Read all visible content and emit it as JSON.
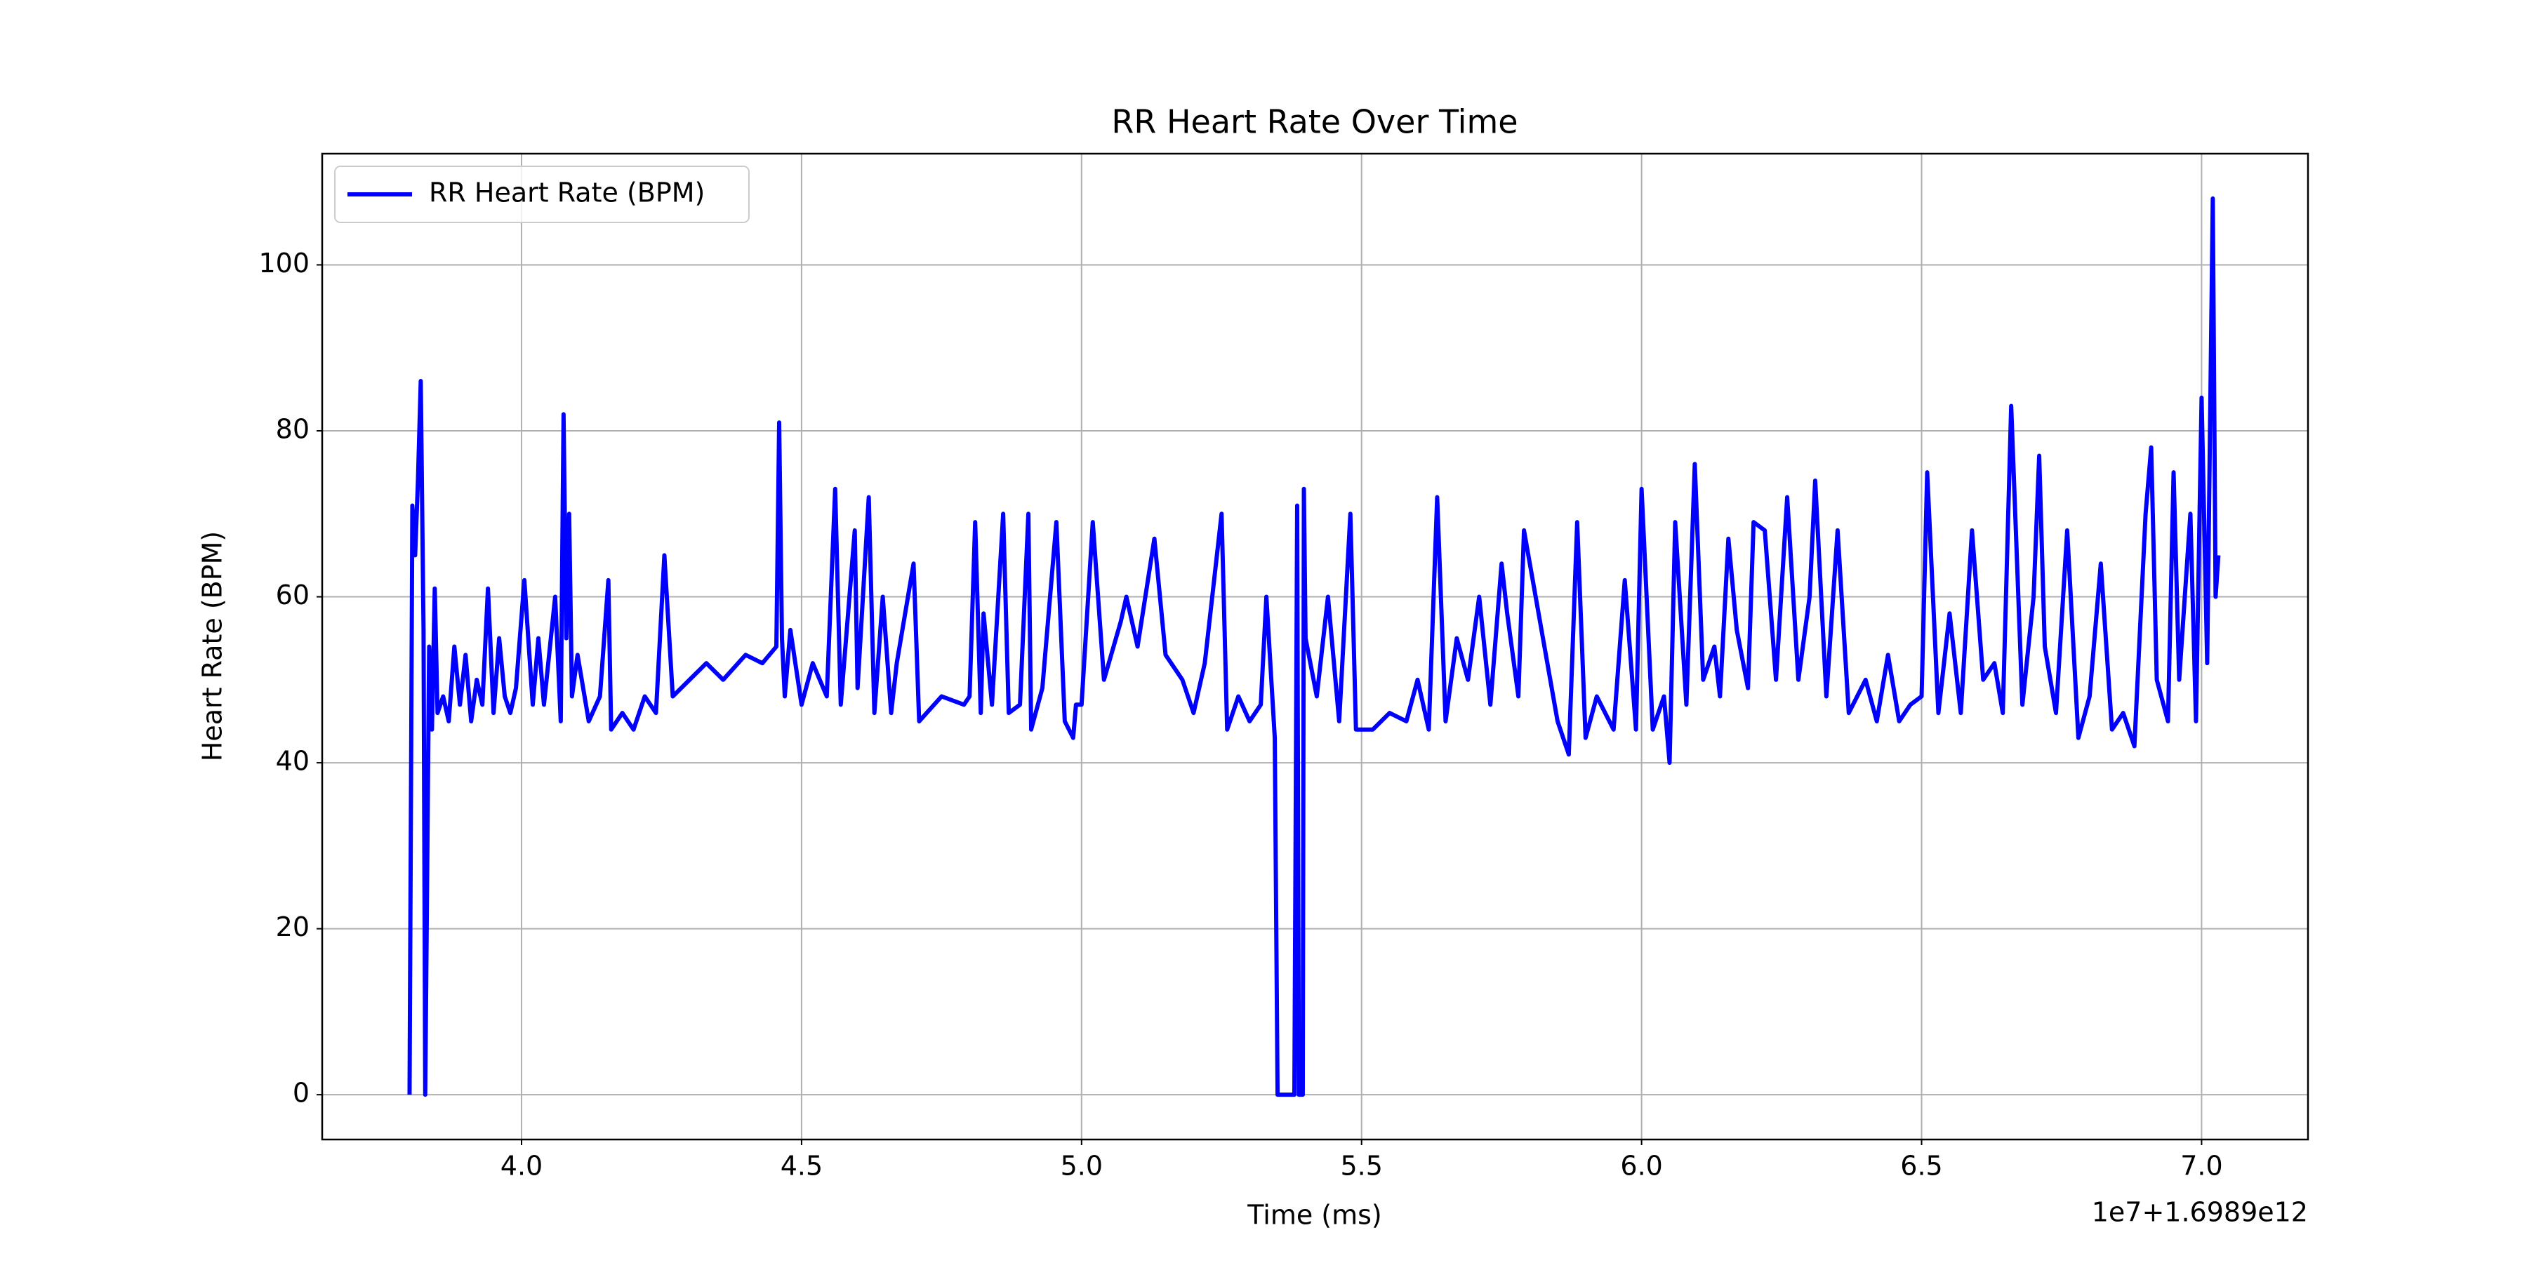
{
  "chart_data": {
    "type": "line",
    "title": "RR Heart Rate Over Time",
    "x_label": "Time (ms)",
    "y_label": "Heart Rate (BPM)",
    "x_offset_label": "1e7+1.6989e12",
    "x": [
      3.8,
      3.805,
      3.81,
      3.815,
      3.82,
      3.825,
      3.828,
      3.835,
      3.84,
      3.845,
      3.85,
      3.86,
      3.87,
      3.88,
      3.89,
      3.9,
      3.91,
      3.92,
      3.93,
      3.94,
      3.95,
      3.96,
      3.97,
      3.98,
      3.99,
      4.005,
      4.02,
      4.03,
      4.04,
      4.06,
      4.07,
      4.075,
      4.08,
      4.085,
      4.09,
      4.1,
      4.12,
      4.14,
      4.155,
      4.16,
      4.18,
      4.2,
      4.22,
      4.24,
      4.255,
      4.27,
      4.3,
      4.33,
      4.36,
      4.4,
      4.43,
      4.455,
      4.46,
      4.465,
      4.47,
      4.48,
      4.5,
      4.52,
      4.545,
      4.56,
      4.57,
      4.595,
      4.6,
      4.62,
      4.63,
      4.645,
      4.66,
      4.67,
      4.7,
      4.71,
      4.75,
      4.79,
      4.8,
      4.81,
      4.82,
      4.825,
      4.84,
      4.86,
      4.87,
      4.89,
      4.905,
      4.91,
      4.93,
      4.955,
      4.97,
      4.985,
      4.99,
      5.0,
      5.02,
      5.04,
      5.07,
      5.08,
      5.1,
      5.13,
      5.15,
      5.18,
      5.2,
      5.22,
      5.25,
      5.26,
      5.28,
      5.3,
      5.32,
      5.33,
      5.345,
      5.35,
      5.38,
      5.385,
      5.388,
      5.395,
      5.397,
      5.4,
      5.42,
      5.44,
      5.46,
      5.48,
      5.49,
      5.52,
      5.55,
      5.58,
      5.6,
      5.62,
      5.635,
      5.65,
      5.67,
      5.69,
      5.71,
      5.73,
      5.75,
      5.76,
      5.78,
      5.79,
      5.85,
      5.87,
      5.885,
      5.9,
      5.92,
      5.95,
      5.97,
      5.99,
      6.0,
      6.02,
      6.04,
      6.05,
      6.06,
      6.08,
      6.095,
      6.11,
      6.13,
      6.14,
      6.155,
      6.17,
      6.19,
      6.2,
      6.22,
      6.24,
      6.26,
      6.28,
      6.3,
      6.31,
      6.33,
      6.35,
      6.37,
      6.4,
      6.42,
      6.44,
      6.46,
      6.48,
      6.5,
      6.51,
      6.53,
      6.55,
      6.57,
      6.59,
      6.61,
      6.63,
      6.645,
      6.66,
      6.68,
      6.7,
      6.71,
      6.72,
      6.74,
      6.76,
      6.78,
      6.8,
      6.82,
      6.84,
      6.86,
      6.88,
      6.9,
      6.91,
      6.92,
      6.94,
      6.95,
      6.96,
      6.98,
      6.99,
      7.0,
      7.01,
      7.02,
      7.025,
      7.03
    ],
    "series": [
      {
        "name": "RR Heart Rate (BPM)",
        "color": "#0000ff",
        "values": [
          0,
          71,
          65,
          74,
          86,
          56,
          0,
          54,
          44,
          61,
          46,
          48,
          45,
          54,
          47,
          53,
          45,
          50,
          47,
          61,
          46,
          55,
          48,
          46,
          49,
          62,
          47,
          55,
          47,
          60,
          45,
          82,
          55,
          70,
          48,
          53,
          45,
          48,
          62,
          44,
          46,
          44,
          48,
          46,
          65,
          48,
          50,
          52,
          50,
          53,
          52,
          54,
          81,
          55,
          48,
          56,
          47,
          52,
          48,
          73,
          47,
          68,
          49,
          72,
          46,
          60,
          46,
          52,
          64,
          45,
          48,
          47,
          48,
          69,
          46,
          58,
          47,
          70,
          46,
          47,
          70,
          44,
          49,
          69,
          45,
          43,
          47,
          47,
          69,
          50,
          57,
          60,
          54,
          67,
          53,
          50,
          46,
          52,
          70,
          44,
          48,
          45,
          47,
          60,
          43,
          0,
          0,
          71,
          0,
          0,
          73,
          55,
          48,
          60,
          45,
          70,
          44,
          44,
          46,
          45,
          50,
          44,
          72,
          45,
          55,
          50,
          60,
          47,
          64,
          58,
          48,
          68,
          45,
          41,
          69,
          43,
          48,
          44,
          62,
          44,
          73,
          44,
          48,
          40,
          69,
          47,
          76,
          50,
          54,
          48,
          67,
          56,
          49,
          69,
          68,
          50,
          72,
          50,
          60,
          74,
          48,
          68,
          46,
          50,
          45,
          53,
          45,
          47,
          48,
          75,
          46,
          58,
          46,
          68,
          50,
          52,
          46,
          83,
          47,
          60,
          77,
          54,
          46,
          68,
          43,
          48,
          64,
          44,
          46,
          42,
          70,
          78,
          50,
          45,
          75,
          50,
          70,
          45,
          84,
          52,
          108,
          60,
          65
        ]
      }
    ],
    "xlim": [
      3.644,
      7.19
    ],
    "xticks": [
      {
        "value": 4,
        "label": "4.0"
      },
      {
        "value": 4.5,
        "label": "4.5"
      },
      {
        "value": 5,
        "label": "5.0"
      },
      {
        "value": 5.5,
        "label": "5.5"
      },
      {
        "value": 6,
        "label": "6.0"
      },
      {
        "value": 6.5,
        "label": "6.5"
      },
      {
        "value": 7,
        "label": "7.0"
      }
    ],
    "ylim": [
      -5.4,
      113.4
    ],
    "yticks": [
      0,
      20,
      40,
      60,
      80,
      100
    ],
    "grid": true,
    "legend": "upper left"
  }
}
